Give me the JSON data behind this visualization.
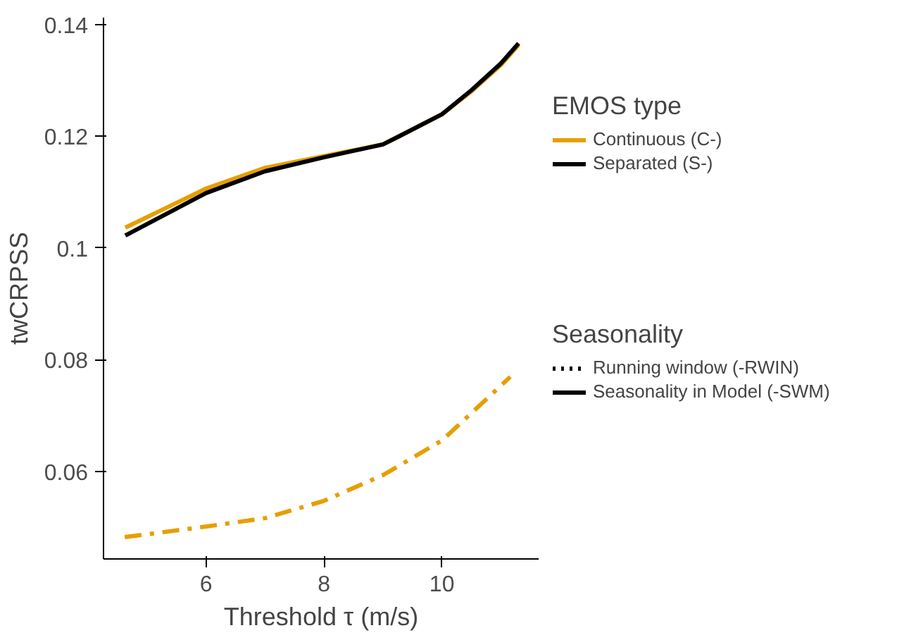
{
  "chart_data": {
    "type": "line",
    "xlabel": "Threshold τ (m/s)",
    "ylabel": "twCRPSS",
    "legend_title": [
      "EMOS type",
      "Seasonality"
    ],
    "legend": "right",
    "x": [
      4.63,
      6,
      7,
      8,
      9,
      9.3,
      10,
      10.5,
      11,
      11.3
    ],
    "xlim": [
      4.26,
      11.64
    ],
    "ylim": [
      0.0443,
      0.1412
    ],
    "xticks": [
      6,
      8,
      10
    ],
    "yticks": [
      0.06,
      0.08,
      0.1,
      0.12,
      0.14
    ],
    "series": [
      {
        "color": "#e69f00",
        "line_style": "solid",
        "values": [
          0.1036,
          0.1106,
          0.1143,
          0.1164,
          0.1185,
          0.1201,
          0.1239,
          0.128,
          0.1327,
          0.1363
        ]
      },
      {
        "color": "#000000",
        "line_style": "solid",
        "values": [
          0.1022,
          0.1098,
          0.1137,
          0.1162,
          0.1185,
          0.1201,
          0.1239,
          0.1282,
          0.133,
          0.1366
        ]
      },
      {
        "color": "#e69f00",
        "line_style": "dashdot",
        "x": [
          4.62,
          6,
          7,
          8,
          9,
          10,
          10.5,
          11.16
        ],
        "values": [
          0.0482,
          0.0501,
          0.0516,
          0.0547,
          0.0593,
          0.0655,
          0.0704,
          0.0769
        ]
      },
      {
        "name": "Continuous (C-)",
        "color": "#e69f00",
        "line_style": "solid",
        "values": [
          null,
          null,
          null,
          null,
          null,
          null,
          null,
          null,
          null,
          null
        ]
      },
      {
        "name": "Separated (S-)",
        "color": "#000000",
        "line_style": "solid",
        "values": [
          null,
          null,
          null,
          null,
          null,
          null,
          null,
          null,
          null,
          null
        ]
      },
      {
        "name": "Running window (-RWIN)",
        "color": "#000000",
        "line_style": "dotted",
        "values": [
          null,
          null,
          null,
          null,
          null,
          null,
          null,
          null,
          null,
          null
        ]
      },
      {
        "name": "Seasonality in Model (-SWM)",
        "color": "#000000",
        "line_style": "solid",
        "values": [
          null,
          null,
          null,
          null,
          null,
          null,
          null,
          null,
          null,
          null
        ]
      }
    ]
  }
}
